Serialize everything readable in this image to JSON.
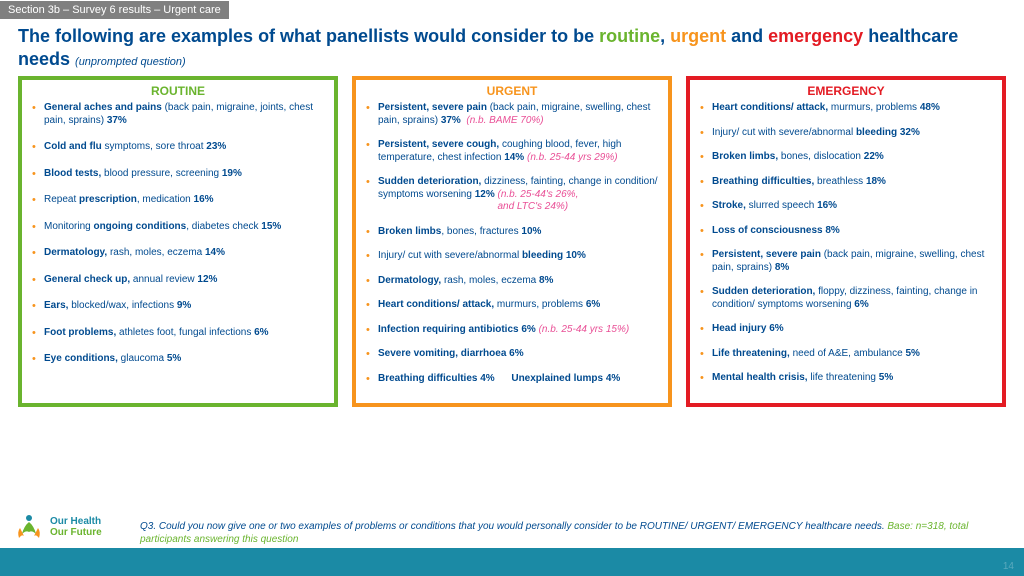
{
  "tag": "Section 3b – Survey 6 results – Urgent care",
  "title": {
    "pre": "The following are examples of what panellists would consider to be ",
    "routine": "routine",
    "sep1": ", ",
    "urgent": "urgent",
    "sep2": " and ",
    "emergency": "emergency",
    "post": " healthcare needs ",
    "sub": "(unprompted question)"
  },
  "panels": {
    "routine": {
      "heading": "ROUTINE",
      "items": [
        {
          "html": "<span class='bold'>General aches and pains</span> (back pain, migraine, joints, chest pain, sprains) <span class='bold'>37%</span>"
        },
        {
          "html": "<span class='bold'>Cold and flu</span> symptoms, sore throat <span class='bold'>23%</span>"
        },
        {
          "html": "<span class='bold'>Blood tests,</span> blood pressure, screening <span class='bold'>19%</span>"
        },
        {
          "html": "Repeat <span class='bold'>prescription</span>, medication <span class='bold'>16%</span>"
        },
        {
          "html": "Monitoring <span class='bold'>ongoing conditions</span>, diabetes check <span class='bold'>15%</span>"
        },
        {
          "html": "<span class='bold'>Dermatology,</span> rash, moles, eczema <span class='bold'>14%</span>"
        },
        {
          "html": "<span class='bold'>General check up,</span> annual review <span class='bold'>12%</span>"
        },
        {
          "html": "<span class='bold'>Ears,</span> blocked/wax, infections <span class='bold'>9%</span>"
        },
        {
          "html": "<span class='bold'>Foot problems,</span> athletes foot, fungal infections <span class='bold'>6%</span>"
        },
        {
          "html": "<span class='bold'>Eye conditions,</span> glaucoma <span class='bold'>5%</span>"
        }
      ]
    },
    "urgent": {
      "heading": "URGENT",
      "items": [
        {
          "html": "<span class='bold'>Persistent, severe pain</span> (back pain, migraine, swelling, chest pain, sprains) <span class='bold'>37%</span>&nbsp; <span class='note'>(n.b. BAME 70%)</span>"
        },
        {
          "html": "<span class='bold'>Persistent, severe cough,</span> coughing blood, fever, high temperature, chest infection <span class='bold'>14%</span> <span class='note'>(n.b. 25-44 yrs 29%)</span>"
        },
        {
          "html": "<span class='bold'>Sudden deterioration,</span> dizziness, fainting, change in condition/ symptoms worsening <span class='bold'>12%</span> <span class='note'>(n.b. 25-44's 26%, <br>&nbsp;&nbsp;&nbsp;&nbsp;&nbsp;&nbsp;&nbsp;&nbsp;&nbsp;&nbsp;&nbsp;&nbsp;&nbsp;&nbsp;&nbsp;&nbsp;&nbsp;&nbsp;&nbsp;&nbsp;&nbsp;&nbsp;&nbsp;&nbsp;&nbsp;&nbsp;&nbsp;&nbsp;&nbsp;&nbsp;&nbsp;&nbsp;&nbsp;&nbsp;&nbsp;&nbsp;&nbsp;&nbsp;&nbsp;&nbsp;&nbsp;&nbsp;&nbsp;and LTC's 24%)</span>"
        },
        {
          "html": "<span class='bold'>Broken limbs</span>, bones, fractures <span class='bold'>10%</span>"
        },
        {
          "html": "Injury/ cut with severe/abnormal <span class='bold'>bleeding 10%</span>"
        },
        {
          "html": "<span class='bold'>Dermatology,</span> rash, moles, eczema <span class='bold'>8%</span>"
        },
        {
          "html": "<span class='bold'>Heart conditions/ attack,</span> murmurs, problems <span class='bold'>6%</span>"
        },
        {
          "html": "<span class='bold'>Infection requiring antibiotics 6%</span> <span class='note'>(n.b. 25-44 yrs 15%)</span>"
        },
        {
          "html": "<span class='bold'>Severe vomiting, diarrhoea 6%</span>"
        },
        {
          "html": "<span class='bold'>Breathing difficulties 4% &nbsp;&nbsp;&nbsp;&nbsp; Unexplained lumps 4%</span>"
        }
      ]
    },
    "emergency": {
      "heading": "EMERGENCY",
      "items": [
        {
          "html": "<span class='bold'>Heart conditions/ attack,</span> murmurs, problems <span class='bold'>48%</span>"
        },
        {
          "html": "Injury/ cut with severe/abnormal <span class='bold'>bleeding 32%</span>"
        },
        {
          "html": "<span class='bold'>Broken limbs,</span> bones, dislocation <span class='bold'>22%</span>"
        },
        {
          "html": "<span class='bold'>Breathing difficulties,</span> breathless <span class='bold'>18%</span>"
        },
        {
          "html": "<span class='bold'>Stroke,</span> slurred speech <span class='bold'>16%</span>"
        },
        {
          "html": "<span class='bold'>Loss of consciousness 8%</span>"
        },
        {
          "html": "<span class='bold'>Persistent, severe pain</span> (back pain, migraine, swelling, chest pain, sprains) <span class='bold'>8%</span>"
        },
        {
          "html": "<span class='bold'>Sudden deterioration,</span> floppy, dizziness, fainting, change in condition/ symptoms worsening <span class='bold'>6%</span>"
        },
        {
          "html": "<span class='bold'>Head injury 6%</span>"
        },
        {
          "html": "<span class='bold'>Life threatening,</span> need of A&E, ambulance <span class='bold'>5%</span>"
        },
        {
          "html": "<span class='bold'>Mental health crisis,</span> life threatening <span class='bold'>5%</span>"
        }
      ]
    }
  },
  "caption": {
    "main": "Q3. Could you now give one or two examples of problems or conditions that you would personally consider to be ROUTINE/ URGENT/ EMERGENCY healthcare needs. ",
    "base": "Base: n=318, total participants answering this question"
  },
  "logo": {
    "l1": "Our Health",
    "l2": "Our Future"
  },
  "page": "14",
  "colors": {
    "routine": "#6ab42e",
    "urgent": "#f7941d",
    "emergency": "#e31b23",
    "brand": "#004a8f",
    "footer": "#1b8aa5",
    "note": "#e94f96"
  }
}
